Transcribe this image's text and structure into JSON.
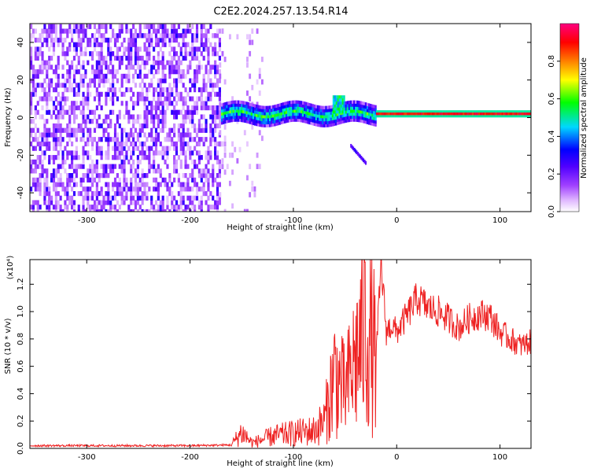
{
  "title": "C2E2.2024.257.13.54.R14",
  "chart_data": [
    {
      "type": "heatmap",
      "title": "C2E2.2024.257.13.54.R14",
      "xlabel": "Height of straight line (km)",
      "ylabel": "Frequency (Hz)",
      "xlim": [
        -355,
        130
      ],
      "ylim": [
        -50,
        50
      ],
      "x_ticks": [
        -300,
        -200,
        -100,
        0,
        100
      ],
      "y_ticks": [
        -40,
        -20,
        0,
        20,
        40
      ],
      "colorbar": {
        "label": "Normalized spectral amplitude",
        "range": [
          0.0,
          1.0
        ],
        "ticks": [
          "0.0",
          "0.2",
          "0.4",
          "0.6",
          "0.8"
        ],
        "colors": [
          "#ffffff",
          "#c78cff",
          "#7a00ff",
          "#0000ff",
          "#00e5ff",
          "#00ff00",
          "#ffff00",
          "#ff8000",
          "#ff0000",
          "#ff0080"
        ]
      },
      "regions": [
        {
          "x_range": [
            -355,
            -175
          ],
          "freq_range": [
            -50,
            50
          ],
          "amplitude": "0.1-0.3",
          "pattern": "noise"
        },
        {
          "x_range": [
            -170,
            -20
          ],
          "center_freq": 2,
          "amplitude": "0.3-0.6",
          "pattern": "wavy band"
        },
        {
          "x_range": [
            -60,
            -52
          ],
          "center_freq": 8,
          "amplitude": "0.5",
          "pattern": "bump"
        },
        {
          "x_range": [
            -45,
            -30
          ],
          "freq_range": [
            -25,
            -15
          ],
          "amplitude": "0.2",
          "pattern": "diagonal streak"
        },
        {
          "x_range": [
            -20,
            130
          ],
          "center_freq": 2,
          "amplitude": "0.8-1.0",
          "pattern": "steady line"
        }
      ]
    },
    {
      "type": "line",
      "xlabel": "Height of straight line (km)",
      "ylabel": "SNR (10 * v/v)",
      "y_multiplier": "(x10⁴)",
      "xlim": [
        -355,
        130
      ],
      "ylim": [
        0,
        13800
      ],
      "x_ticks": [
        -300,
        -200,
        -100,
        0,
        100
      ],
      "y_ticks": [
        "0.0",
        "0.2",
        "0.4",
        "0.6",
        "0.8",
        "1.0",
        "1.2"
      ],
      "series": [
        {
          "color": "#ee2222",
          "x": [
            -355,
            -300,
            -250,
            -200,
            -160,
            -150,
            -140,
            -120,
            -100,
            -80,
            -70,
            -60,
            -50,
            -40,
            -30,
            -20,
            -15,
            -10,
            -5,
            0,
            10,
            20,
            30,
            40,
            50,
            60,
            70,
            80,
            90,
            100,
            110,
            120,
            130
          ],
          "y": [
            200,
            200,
            200,
            200,
            250,
            1200,
            400,
            900,
            1100,
            1300,
            2000,
            5500,
            4000,
            6500,
            9000,
            6500,
            13500,
            8500,
            9000,
            8500,
            9700,
            11000,
            10300,
            10000,
            9500,
            8800,
            9500,
            9800,
            9700,
            8500,
            8000,
            7500,
            7800
          ]
        }
      ]
    }
  ]
}
